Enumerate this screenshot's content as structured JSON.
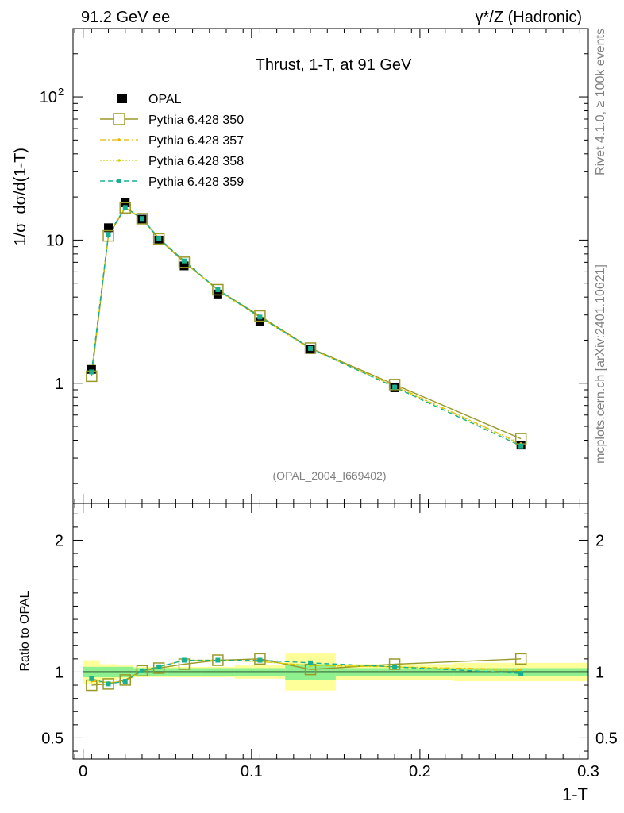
{
  "header": {
    "left": "91.2 GeV ee",
    "right": "γ*/Z (Hadronic)"
  },
  "side_text": {
    "rivet": "Rivet 4.1.0, ≥ 100k events",
    "mcplots": "mcplots.cern.ch [arXiv:2401.10621]"
  },
  "colors": {
    "opal": "#000000",
    "p350": "#9a9a2a",
    "p357": "#e6b800",
    "p358": "#c8d400",
    "p359": "#18b090",
    "band_inner": "#8ef08e",
    "band_outer": "#ffff99"
  },
  "chart_data": [
    {
      "type": "line",
      "title": "Thrust, 1-T, at 91 GeV",
      "xlabel": "1-T",
      "ylabel": "1/σ  dσ/d(1-T)",
      "yscale": "log",
      "xlim": [
        -0.006,
        0.3
      ],
      "ylim": [
        0.145,
        300
      ],
      "ytick_labels": [
        "1",
        "10",
        "10"
      ],
      "ytick_sup": "2",
      "annotation": "(OPAL_2004_I669402)",
      "legend_placement": "top-left",
      "x": [
        0.005,
        0.015,
        0.025,
        0.035,
        0.045,
        0.06,
        0.08,
        0.105,
        0.135,
        0.185,
        0.26
      ],
      "x_edges": [
        0.0,
        0.01,
        0.02,
        0.03,
        0.04,
        0.05,
        0.07,
        0.09,
        0.12,
        0.15,
        0.22,
        0.3
      ],
      "series": [
        {
          "name": "OPAL",
          "key": "opal",
          "values": [
            1.25,
            12.2,
            18.2,
            14.0,
            10.0,
            6.6,
            4.2,
            2.7,
            1.72,
            0.93,
            0.37
          ]
        },
        {
          "name": "Pythia 6.428 350",
          "key": "p350",
          "values": [
            1.12,
            10.7,
            16.8,
            14.1,
            10.2,
            7.0,
            4.5,
            2.95,
            1.76,
            0.98,
            0.41
          ]
        },
        {
          "name": "Pythia 6.428 357",
          "key": "p357",
          "values": [
            1.18,
            10.9,
            16.9,
            14.1,
            10.3,
            7.1,
            4.45,
            2.9,
            1.74,
            0.96,
            0.38
          ]
        },
        {
          "name": "Pythia 6.428 358",
          "key": "p358",
          "values": [
            1.2,
            11.0,
            17.0,
            14.2,
            10.3,
            7.1,
            4.45,
            2.88,
            1.74,
            0.95,
            0.375
          ]
        },
        {
          "name": "Pythia 6.428 359",
          "key": "p359",
          "values": [
            1.2,
            10.95,
            16.9,
            14.15,
            10.3,
            7.15,
            4.5,
            2.9,
            1.75,
            0.94,
            0.365
          ]
        }
      ]
    },
    {
      "type": "line",
      "title": "",
      "xlabel": "1-T",
      "ylabel": "Ratio to OPAL",
      "xlim": [
        -0.006,
        0.3
      ],
      "ylim": [
        0.34,
        2.28
      ],
      "ytick_labels": [
        "0.5",
        "1",
        "2"
      ],
      "xtick_labels": [
        "0",
        "0.1",
        "0.2",
        "0.3"
      ],
      "x": [
        0.005,
        0.015,
        0.025,
        0.035,
        0.045,
        0.06,
        0.08,
        0.105,
        0.135,
        0.185,
        0.26
      ],
      "band_inner": [
        0.04,
        0.04,
        0.04,
        0.03,
        0.03,
        0.03,
        0.03,
        0.03,
        0.06,
        0.03,
        0.03
      ],
      "band_outer": [
        0.09,
        0.06,
        0.05,
        0.04,
        0.04,
        0.04,
        0.04,
        0.05,
        0.14,
        0.06,
        0.07
      ],
      "series": [
        {
          "name": "Pythia 6.428 350",
          "key": "p350",
          "values": [
            0.9,
            0.91,
            0.94,
            1.01,
            1.03,
            1.06,
            1.09,
            1.1,
            1.02,
            1.06,
            1.1
          ]
        },
        {
          "name": "Pythia 6.428 357",
          "key": "p357",
          "values": [
            0.93,
            0.92,
            0.93,
            1.01,
            1.04,
            1.09,
            1.09,
            1.08,
            1.05,
            1.04,
            1.02
          ]
        },
        {
          "name": "Pythia 6.428 358",
          "key": "p358",
          "values": [
            0.94,
            0.92,
            0.93,
            1.01,
            1.04,
            1.09,
            1.09,
            1.08,
            1.05,
            1.04,
            1.01
          ]
        },
        {
          "name": "Pythia 6.428 359",
          "key": "p359",
          "values": [
            0.95,
            0.91,
            0.93,
            1.01,
            1.04,
            1.09,
            1.09,
            1.09,
            1.07,
            1.04,
            0.99
          ]
        }
      ]
    }
  ]
}
